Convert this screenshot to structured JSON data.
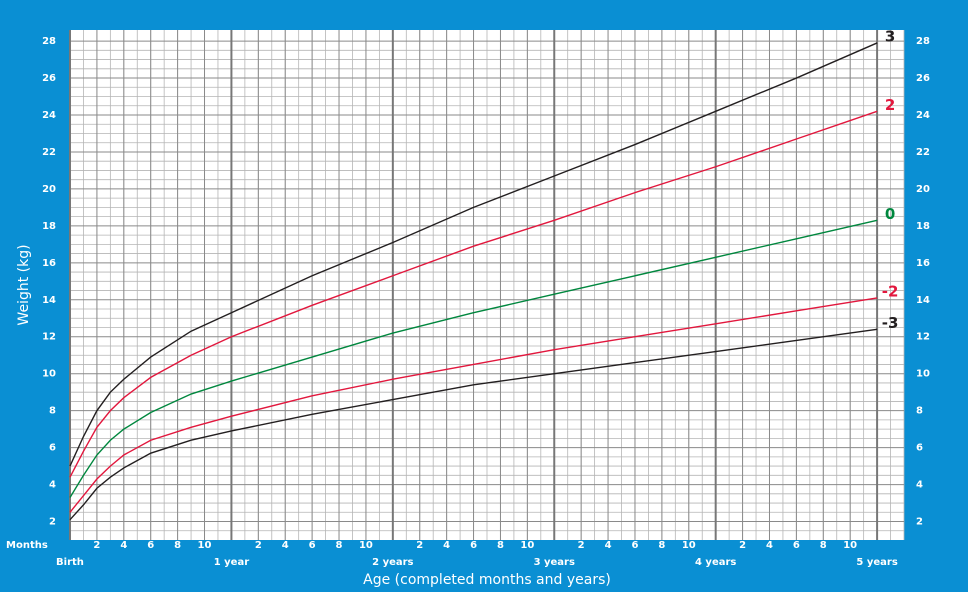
{
  "chart_data": {
    "type": "line",
    "y_label": "Weight (kg)",
    "x_label": "Age (completed months and years)",
    "months_label": "Months",
    "x": [
      0,
      1,
      2,
      3,
      4,
      6,
      9,
      12,
      18,
      24,
      30,
      36,
      42,
      48,
      54,
      60
    ],
    "series": [
      {
        "name": "3",
        "color": "#231f20",
        "values": [
          5.0,
          6.6,
          8.0,
          9.0,
          9.7,
          10.9,
          12.3,
          13.3,
          15.3,
          17.1,
          19.0,
          20.7,
          22.4,
          24.2,
          26.0,
          27.9
        ]
      },
      {
        "name": "2",
        "color": "#e2173d",
        "values": [
          4.4,
          5.8,
          7.1,
          8.0,
          8.7,
          9.8,
          11.0,
          12.0,
          13.7,
          15.3,
          16.9,
          18.3,
          19.8,
          21.2,
          22.7,
          24.2
        ]
      },
      {
        "name": "0",
        "color": "#00873e",
        "values": [
          3.3,
          4.5,
          5.6,
          6.4,
          7.0,
          7.9,
          8.9,
          9.6,
          10.9,
          12.2,
          13.3,
          14.3,
          15.3,
          16.3,
          17.3,
          18.3
        ]
      },
      {
        "name": "-2",
        "color": "#e2173d",
        "values": [
          2.5,
          3.4,
          4.3,
          5.0,
          5.6,
          6.4,
          7.1,
          7.7,
          8.8,
          9.7,
          10.5,
          11.3,
          12.0,
          12.7,
          13.4,
          14.1
        ]
      },
      {
        "name": "-3",
        "color": "#231f20",
        "values": [
          2.1,
          2.9,
          3.8,
          4.4,
          4.9,
          5.7,
          6.4,
          6.9,
          7.8,
          8.6,
          9.4,
          10.0,
          10.6,
          11.2,
          11.8,
          12.4
        ]
      }
    ],
    "xlim": [
      0,
      62
    ],
    "ylim": [
      1,
      28.6
    ],
    "yticks": [
      2,
      4,
      6,
      8,
      10,
      12,
      14,
      16,
      18,
      20,
      22,
      24,
      26,
      28
    ],
    "xticks": [
      2,
      4,
      6,
      8,
      10,
      {
        "value": 14,
        "label": "2"
      },
      {
        "value": 16,
        "label": "4"
      },
      {
        "value": 18,
        "label": "6"
      },
      {
        "value": 20,
        "label": "8"
      },
      {
        "value": 22,
        "label": "10"
      },
      {
        "value": 26,
        "label": "2"
      },
      {
        "value": 28,
        "label": "4"
      },
      {
        "value": 30,
        "label": "6"
      },
      {
        "value": 32,
        "label": "8"
      },
      {
        "value": 34,
        "label": "10"
      },
      {
        "value": 38,
        "label": "2"
      },
      {
        "value": 40,
        "label": "4"
      },
      {
        "value": 42,
        "label": "6"
      },
      {
        "value": 44,
        "label": "8"
      },
      {
        "value": 46,
        "label": "10"
      },
      {
        "value": 50,
        "label": "2"
      },
      {
        "value": 52,
        "label": "4"
      },
      {
        "value": 54,
        "label": "6"
      },
      {
        "value": 56,
        "label": "8"
      },
      {
        "value": 58,
        "label": "10"
      }
    ],
    "year_ticks": [
      {
        "value": 0,
        "label": "Birth"
      },
      {
        "value": 12,
        "label": "1 year"
      },
      {
        "value": 24,
        "label": "2 years"
      },
      {
        "value": 36,
        "label": "3 years"
      },
      {
        "value": 48,
        "label": "4 years"
      },
      {
        "value": 60,
        "label": "5 years"
      }
    ],
    "grid": true
  }
}
